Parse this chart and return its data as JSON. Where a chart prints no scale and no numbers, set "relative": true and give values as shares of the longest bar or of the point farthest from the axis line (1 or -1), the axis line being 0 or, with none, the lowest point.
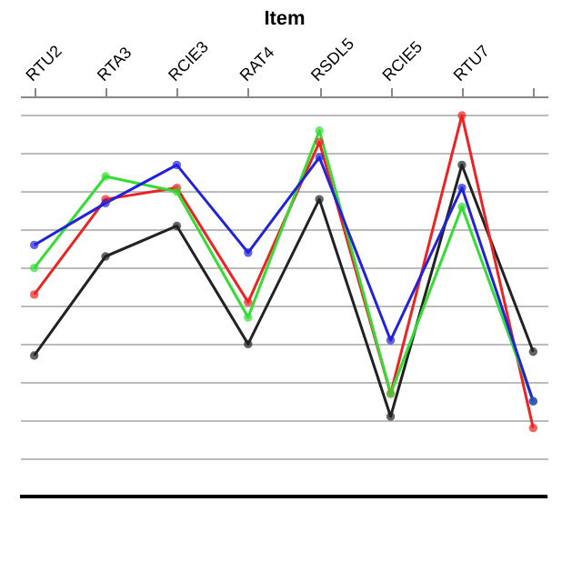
{
  "chart_data": {
    "type": "line",
    "xlabel": "Item",
    "categories": [
      "RTU2",
      "RTA3",
      "RCIE3",
      "RAT4",
      "RSDL5",
      "RCIE5",
      "RTU7",
      null
    ],
    "relative": true,
    "grid": "y",
    "marker": "circle",
    "legend": false,
    "series": [
      {
        "color": "#222222",
        "values": [
          0.37,
          0.63,
          0.71,
          0.4,
          0.78,
          0.21,
          0.87,
          0.38
        ]
      },
      {
        "color": "#ee2222",
        "values": [
          0.53,
          0.78,
          0.81,
          0.51,
          0.93,
          0.27,
          1,
          0.18
        ]
      },
      {
        "color": "#33dd33",
        "values": [
          0.6,
          0.84,
          0.8,
          0.47,
          0.96,
          0.27,
          0.76,
          0.25
        ]
      },
      {
        "color": "#2222dd",
        "values": [
          0.66,
          0.77,
          0.87,
          0.64,
          0.89,
          0.41,
          0.81,
          0.25
        ]
      }
    ]
  }
}
